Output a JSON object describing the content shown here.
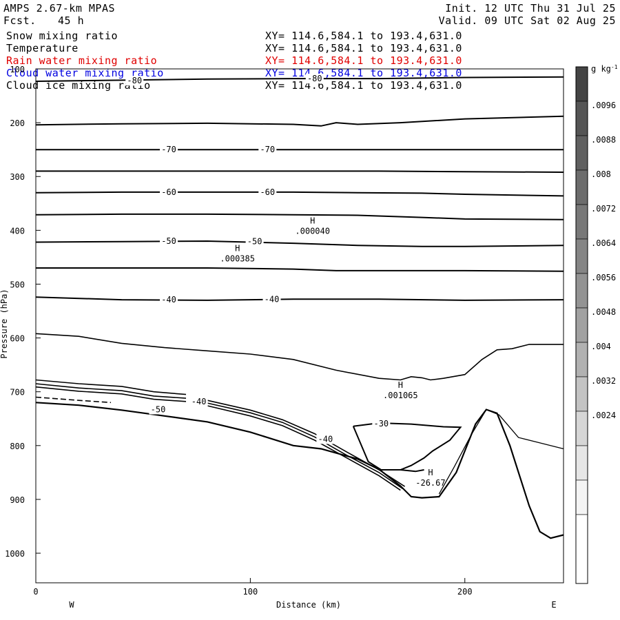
{
  "header": {
    "model": "AMPS 2.67-km MPAS",
    "init": "Init. 12 UTC Thu 31 Jul 25",
    "fcst_label": "Fcst.",
    "fcst_value": "45 h",
    "valid": "Valid. 09 UTC Sat 02 Aug 25"
  },
  "fields": [
    {
      "name": "Snow mixing ratio",
      "xy": "XY= 114.6,584.1 to 193.4,631.0",
      "color": "#000000"
    },
    {
      "name": "Temperature",
      "xy": "XY= 114.6,584.1 to 193.4,631.0",
      "color": "#000000"
    },
    {
      "name": "Rain water mixing ratio",
      "xy": "XY= 114.6,584.1 to 193.4,631.0",
      "color": "#e00000"
    },
    {
      "name": "Cloud water mixing ratio",
      "xy": "XY= 114.6,584.1 to 193.4,631.0",
      "color": "#0000e0"
    },
    {
      "name": "Cloud ice mixing ratio",
      "xy": "XY= 114.6,584.1 to 193.4,631.0",
      "color": "#000000"
    }
  ],
  "chart_data": {
    "type": "contour",
    "xlabel": "Distance (km)",
    "ylabel": "Pressure (hPa)",
    "xlim": [
      0,
      246
    ],
    "ylim": [
      1055,
      100
    ],
    "x_ticks": [
      0,
      100,
      200
    ],
    "y_ticks": [
      100,
      200,
      300,
      400,
      500,
      600,
      700,
      800,
      900,
      1000
    ],
    "x_end_labels": {
      "left": "W",
      "right": "E"
    },
    "colorbar": {
      "unit": "g kg",
      "unit_exp": "-1",
      "labels": [
        ".0096",
        ".0088",
        ".008",
        ".0072",
        ".0064",
        ".0056",
        ".0048",
        ".004",
        ".0032",
        ".0024"
      ],
      "colors": [
        "#444444",
        "#555555",
        "#606060",
        "#6c6c6c",
        "#787878",
        "#858585",
        "#939393",
        "#a1a1a1",
        "#b1b1b1",
        "#c3c3c3",
        "#d6d6d6",
        "#e6e6e6",
        "#f4f4f4"
      ]
    },
    "temperature_contours": [
      {
        "label": "-80",
        "points": [
          [
            0,
            123
          ],
          [
            40,
            121
          ],
          [
            80,
            119
          ],
          [
            120,
            118
          ],
          [
            160,
            118
          ],
          [
            200,
            116
          ],
          [
            246,
            115
          ]
        ]
      },
      {
        "label": "",
        "points": [
          [
            0,
            204
          ],
          [
            40,
            202
          ],
          [
            80,
            201
          ],
          [
            120,
            203
          ],
          [
            133,
            206
          ],
          [
            140,
            200
          ],
          [
            150,
            203
          ],
          [
            170,
            200
          ],
          [
            200,
            193
          ],
          [
            246,
            188
          ]
        ]
      },
      {
        "label": "-70",
        "points": [
          [
            0,
            250
          ],
          [
            40,
            250
          ],
          [
            80,
            250
          ],
          [
            120,
            250
          ],
          [
            160,
            250
          ],
          [
            200,
            250
          ],
          [
            246,
            250
          ]
        ]
      },
      {
        "label": "",
        "points": [
          [
            0,
            290
          ],
          [
            40,
            290
          ],
          [
            80,
            290
          ],
          [
            120,
            290
          ],
          [
            160,
            290
          ],
          [
            200,
            291
          ],
          [
            246,
            292
          ]
        ]
      },
      {
        "label": "-60",
        "points": [
          [
            0,
            330
          ],
          [
            40,
            329
          ],
          [
            80,
            329
          ],
          [
            120,
            329
          ],
          [
            150,
            330
          ],
          [
            180,
            331
          ],
          [
            200,
            333
          ],
          [
            246,
            336
          ]
        ]
      },
      {
        "label": "",
        "points": [
          [
            0,
            371
          ],
          [
            40,
            370
          ],
          [
            80,
            370
          ],
          [
            120,
            371
          ],
          [
            150,
            372
          ],
          [
            180,
            376
          ],
          [
            200,
            379
          ],
          [
            246,
            380
          ]
        ]
      },
      {
        "label": "-50",
        "points": [
          [
            0,
            422
          ],
          [
            40,
            421
          ],
          [
            80,
            420
          ],
          [
            120,
            424
          ],
          [
            150,
            428
          ],
          [
            180,
            430
          ],
          [
            200,
            430
          ],
          [
            246,
            428
          ]
        ]
      },
      {
        "label": "",
        "points": [
          [
            0,
            470
          ],
          [
            40,
            470
          ],
          [
            80,
            470
          ],
          [
            120,
            472
          ],
          [
            140,
            475
          ],
          [
            160,
            475
          ],
          [
            200,
            475
          ],
          [
            246,
            476
          ]
        ]
      },
      {
        "label": "-40",
        "points": [
          [
            0,
            524
          ],
          [
            40,
            529
          ],
          [
            80,
            530
          ],
          [
            120,
            528
          ],
          [
            160,
            528
          ],
          [
            200,
            530
          ],
          [
            246,
            529
          ]
        ]
      },
      {
        "label": "-30",
        "points": [
          [
            148,
            764
          ],
          [
            160,
            758
          ],
          [
            175,
            760
          ],
          [
            190,
            765
          ],
          [
            198,
            766
          ],
          [
            193,
            790
          ],
          [
            185,
            810
          ],
          [
            181,
            823
          ],
          [
            175,
            837
          ],
          [
            170,
            845
          ],
          [
            161,
            845
          ],
          [
            155,
            830
          ],
          [
            148,
            764
          ]
        ]
      },
      {
        "label": "",
        "points": [
          [
            170,
            845
          ],
          [
            177,
            848
          ],
          [
            181,
            845
          ]
        ]
      }
    ],
    "cloud_ice_contours": [
      {
        "label": "",
        "points": [
          [
            0,
            592
          ],
          [
            20,
            597
          ],
          [
            40,
            610
          ],
          [
            60,
            618
          ],
          [
            80,
            624
          ],
          [
            100,
            630
          ],
          [
            120,
            640
          ],
          [
            140,
            660
          ],
          [
            160,
            675
          ],
          [
            170,
            678
          ],
          [
            175,
            672
          ],
          [
            180,
            674
          ],
          [
            184,
            678
          ],
          [
            190,
            675
          ],
          [
            200,
            668
          ],
          [
            208,
            640
          ],
          [
            215,
            622
          ],
          [
            222,
            620
          ],
          [
            230,
            612
          ],
          [
            246,
            612
          ]
        ]
      },
      {
        "label": "",
        "points": [
          [
            0,
            678
          ],
          [
            20,
            685
          ],
          [
            40,
            690
          ],
          [
            55,
            700
          ],
          [
            70,
            705
          ]
        ]
      },
      {
        "label": "",
        "points": [
          [
            0,
            685
          ],
          [
            20,
            693
          ],
          [
            40,
            698
          ],
          [
            55,
            708
          ],
          [
            70,
            712
          ]
        ]
      },
      {
        "label": "",
        "points": [
          [
            0,
            691
          ],
          [
            20,
            699
          ],
          [
            40,
            704
          ],
          [
            55,
            714
          ],
          [
            70,
            718
          ]
        ]
      },
      {
        "label": "-40",
        "points": [
          [
            80,
            716
          ],
          [
            100,
            734
          ],
          [
            115,
            752
          ],
          [
            130,
            778
          ],
          [
            145,
            812
          ],
          [
            160,
            845
          ],
          [
            172,
            876
          ]
        ]
      },
      {
        "label": "",
        "points": [
          [
            80,
            721
          ],
          [
            100,
            739
          ],
          [
            115,
            757
          ],
          [
            130,
            784
          ],
          [
            145,
            818
          ],
          [
            160,
            850
          ],
          [
            171,
            880
          ]
        ]
      },
      {
        "label": "",
        "points": [
          [
            80,
            726
          ],
          [
            100,
            745
          ],
          [
            115,
            763
          ],
          [
            130,
            790
          ],
          [
            145,
            823
          ],
          [
            160,
            856
          ],
          [
            170,
            883
          ]
        ]
      }
    ],
    "terrain": {
      "points": [
        [
          0,
          720
        ],
        [
          20,
          725
        ],
        [
          40,
          734
        ],
        [
          60,
          745
        ],
        [
          80,
          756
        ],
        [
          100,
          775
        ],
        [
          120,
          800
        ],
        [
          133,
          806
        ],
        [
          150,
          825
        ],
        [
          160,
          844
        ],
        [
          170,
          875
        ],
        [
          175,
          895
        ],
        [
          180,
          897
        ],
        [
          188,
          895
        ],
        [
          196,
          850
        ],
        [
          205,
          760
        ],
        [
          210,
          733
        ],
        [
          215,
          740
        ],
        [
          221,
          800
        ],
        [
          230,
          912
        ],
        [
          235,
          960
        ],
        [
          240,
          972
        ],
        [
          246,
          966
        ]
      ]
    },
    "cloud_water_contour": {
      "points": [
        [
          188,
          890
        ],
        [
          195,
          840
        ],
        [
          203,
          780
        ],
        [
          210,
          733
        ],
        [
          216,
          743
        ],
        [
          225,
          785
        ],
        [
          235,
          795
        ],
        [
          246,
          806
        ]
      ]
    },
    "rain_dashed": {
      "points": [
        [
          0,
          710
        ],
        [
          20,
          716
        ],
        [
          35,
          720
        ]
      ]
    },
    "mixing_labels": [
      {
        "H": "H",
        "value": ".000040",
        "x": 129,
        "p": 390
      },
      {
        "H": "H",
        "value": ".000385",
        "x": 94,
        "p": 441
      },
      {
        "H": "H",
        "value": ".001065",
        "x": 170,
        "p": 695
      },
      {
        "H": "H",
        "value": "-26.67",
        "x": 184,
        "p": 858
      }
    ],
    "inline_labels": [
      {
        "text": "-80",
        "x": 46,
        "p": 122
      },
      {
        "text": "-80",
        "x": 130,
        "p": 118
      },
      {
        "text": "-70",
        "x": 62,
        "p": 250
      },
      {
        "text": "-70",
        "x": 108,
        "p": 250
      },
      {
        "text": "-60",
        "x": 62,
        "p": 329
      },
      {
        "text": "-60",
        "x": 108,
        "p": 329
      },
      {
        "text": "-50",
        "x": 62,
        "p": 420
      },
      {
        "text": "-50",
        "x": 102,
        "p": 421
      },
      {
        "text": "-40",
        "x": 62,
        "p": 529
      },
      {
        "text": "-40",
        "x": 110,
        "p": 528
      },
      {
        "text": "-40",
        "x": 76,
        "p": 718
      },
      {
        "text": "-50",
        "x": 57,
        "p": 733
      },
      {
        "text": "-40",
        "x": 135,
        "p": 788
      },
      {
        "text": "-30",
        "x": 161,
        "p": 759
      }
    ]
  }
}
